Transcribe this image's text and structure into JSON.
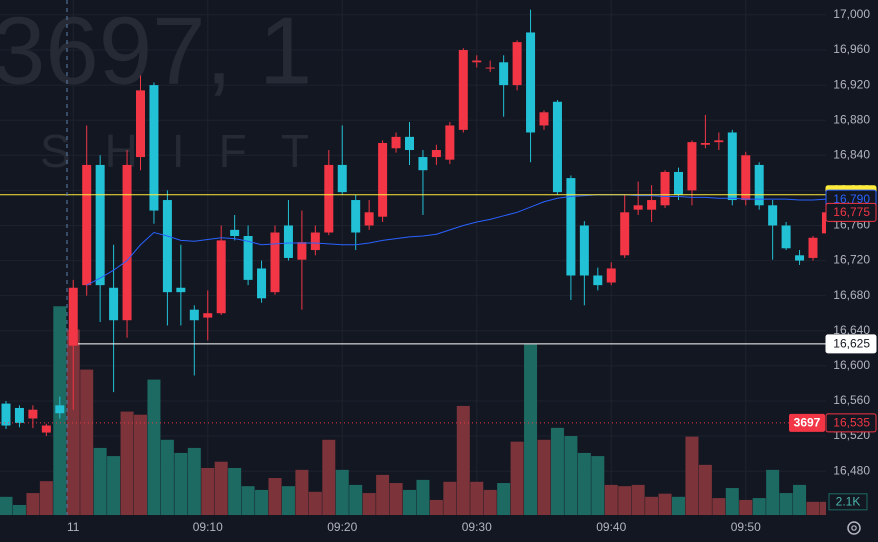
{
  "chart_data": {
    "type": "candlestick",
    "watermark": "3697, 1",
    "watermark_sub": "SHIFT",
    "categories": [
      null,
      null,
      null,
      null,
      null,
      "11",
      null,
      null,
      null,
      null,
      null,
      null,
      null,
      null,
      null,
      "09:10",
      null,
      null,
      null,
      null,
      null,
      null,
      null,
      null,
      null,
      "09:20",
      null,
      null,
      null,
      null,
      null,
      null,
      null,
      null,
      null,
      "09:30",
      null,
      null,
      null,
      null,
      null,
      null,
      null,
      null,
      null,
      "09:40",
      null,
      null,
      null,
      null,
      null,
      null,
      null,
      null,
      null,
      "09:50",
      null,
      null,
      null,
      null,
      null,
      null
    ],
    "open": [
      16557,
      16552,
      16540,
      16524,
      16555,
      16623,
      16692,
      16829,
      16689,
      16652,
      16838,
      16920,
      16789,
      16689,
      16664,
      16655,
      16660,
      16755,
      16748,
      16711,
      16684,
      16760,
      16721,
      16732,
      16752,
      16829,
      16789,
      16760,
      16770,
      16848,
      16861,
      16838,
      16838,
      16835,
      16869,
      16946,
      16939,
      16946,
      16920,
      16980,
      16874,
      16901,
      16814,
      16760,
      16703,
      16695,
      16726,
      16778,
      16778,
      16783,
      16821,
      16800,
      16852,
      16855,
      16866,
      16789,
      16829,
      16783,
      16760,
      16726,
      16723,
      16751
    ],
    "high": [
      16560,
      16555,
      16555,
      16534,
      16565,
      16698,
      16874,
      16840,
      16738,
      16846,
      16931,
      16923,
      16800,
      16738,
      16669,
      16686,
      16760,
      16772,
      16760,
      16720,
      16760,
      16789,
      16777,
      16760,
      16846,
      16874,
      16795,
      16789,
      16857,
      16866,
      16878,
      16846,
      16852,
      16878,
      16962,
      16954,
      16948,
      16954,
      16971,
      17006,
      16891,
      16903,
      16817,
      16765,
      16712,
      16718,
      16795,
      16810,
      16806,
      16823,
      16826,
      16857,
      16886,
      16866,
      16869,
      16844,
      16832,
      16789,
      16764,
      16732,
      16748,
      16776
    ],
    "low": [
      16528,
      16530,
      16529,
      16520,
      16540,
      16550,
      16680,
      16650,
      16570,
      16632,
      16823,
      16762,
      16646,
      16646,
      16589,
      16629,
      16658,
      16743,
      16692,
      16672,
      16681,
      16720,
      16664,
      16726,
      16749,
      16795,
      16732,
      16755,
      16764,
      16843,
      16829,
      16772,
      16829,
      16830,
      16866,
      16940,
      16935,
      16884,
      16914,
      16832,
      16869,
      16795,
      16675,
      16669,
      16686,
      16692,
      16723,
      16772,
      16764,
      16780,
      16789,
      16783,
      16848,
      16846,
      16783,
      16783,
      16778,
      16721,
      16732,
      16715,
      16720,
      16749
    ],
    "close": [
      16532,
      16535,
      16550,
      16532,
      16546,
      16689,
      16829,
      16692,
      16652,
      16829,
      16914,
      16777,
      16684,
      16684,
      16652,
      16660,
      16743,
      16748,
      16698,
      16677,
      16752,
      16723,
      16741,
      16752,
      16829,
      16798,
      16752,
      16775,
      16854,
      16861,
      16846,
      16823,
      16846,
      16874,
      16960,
      16948,
      16940,
      16920,
      16969,
      16866,
      16889,
      16798,
      16703,
      16703,
      16692,
      16711,
      16775,
      16783,
      16789,
      16821,
      16795,
      16855,
      16854,
      16857,
      16789,
      16840,
      16783,
      16760,
      16734,
      16720,
      16746,
      16775
    ],
    "up_color": "#f23645",
    "down_color": "#22c1d6",
    "volume": {
      "values": [
        2900,
        1600,
        3500,
        5400,
        33300,
        29600,
        23200,
        10700,
        9400,
        16500,
        16000,
        21600,
        12000,
        9900,
        10700,
        7500,
        8500,
        7500,
        4600,
        4000,
        5900,
        4600,
        7200,
        3700,
        12000,
        7200,
        4800,
        3500,
        6400,
        5100,
        4000,
        5600,
        2400,
        5300,
        17400,
        5300,
        4000,
        5100,
        11700,
        27200,
        12000,
        13900,
        12600,
        9900,
        9400,
        4800,
        4600,
        4800,
        2900,
        3400,
        2900,
        12500,
        8000,
        2700,
        4300,
        2400,
        2700,
        7200,
        3500,
        4800,
        2100,
        2100
      ],
      "up_color": "#7c3339",
      "down_color": "#1d6a63"
    },
    "volume_lim": [
      0,
      41000
    ],
    "volume_marker": {
      "value": 2100,
      "label": "2.1K"
    },
    "ma": {
      "color": "#2962ff",
      "values": [
        null,
        null,
        null,
        null,
        null,
        null,
        16692,
        16700,
        16709,
        16720,
        16738,
        16752,
        16748,
        16743,
        16742,
        16744,
        16746,
        16745,
        16742,
        16738,
        16739,
        16740,
        16740,
        16740,
        16739,
        16738,
        16738,
        16740,
        16743,
        16745,
        16747,
        16748,
        16750,
        16755,
        16760,
        16764,
        16767,
        16771,
        16775,
        16781,
        16787,
        16791,
        16793,
        16794,
        16795,
        16795,
        16795,
        16794,
        16794,
        16793,
        16793,
        16792,
        16792,
        16791,
        16791,
        16790,
        16790,
        16790,
        16790,
        16789,
        16789,
        16790
      ]
    },
    "price_lines": [
      {
        "value": 16795,
        "label": "16,795",
        "color": "#ffeb3b",
        "style": "solid"
      },
      {
        "value": 16790,
        "label": "16,790",
        "color": "#2962ff",
        "style": "none"
      },
      {
        "value": 16775,
        "label": "16,775",
        "color": "#f23645",
        "style": "none"
      },
      {
        "value": 16625,
        "label": "16,625",
        "color": "#ffffff",
        "style": "solid"
      },
      {
        "value": 16535,
        "label": "16,535",
        "tag": "3697",
        "color": "#f23645",
        "style": "dotted"
      }
    ],
    "ylim": [
      16430,
      17017
    ],
    "yticks": [
      {
        "value": 16480,
        "label": "16,480"
      },
      {
        "value": 16520,
        "label": "16,520"
      },
      {
        "value": 16560,
        "label": "16,560"
      },
      {
        "value": 16600,
        "label": "16,600"
      },
      {
        "value": 16640,
        "label": "16,640"
      },
      {
        "value": 16680,
        "label": "16,680"
      },
      {
        "value": 16720,
        "label": "16,720"
      },
      {
        "value": 16760,
        "label": "16,760"
      },
      {
        "value": 16800,
        "label": "16,800"
      },
      {
        "value": 16840,
        "label": "16,840"
      },
      {
        "value": 16880,
        "label": "16,880"
      },
      {
        "value": 16920,
        "label": "16,920"
      },
      {
        "value": 16960,
        "label": "16,960"
      },
      {
        "value": 17000,
        "label": "17,000"
      }
    ],
    "grid": true
  }
}
